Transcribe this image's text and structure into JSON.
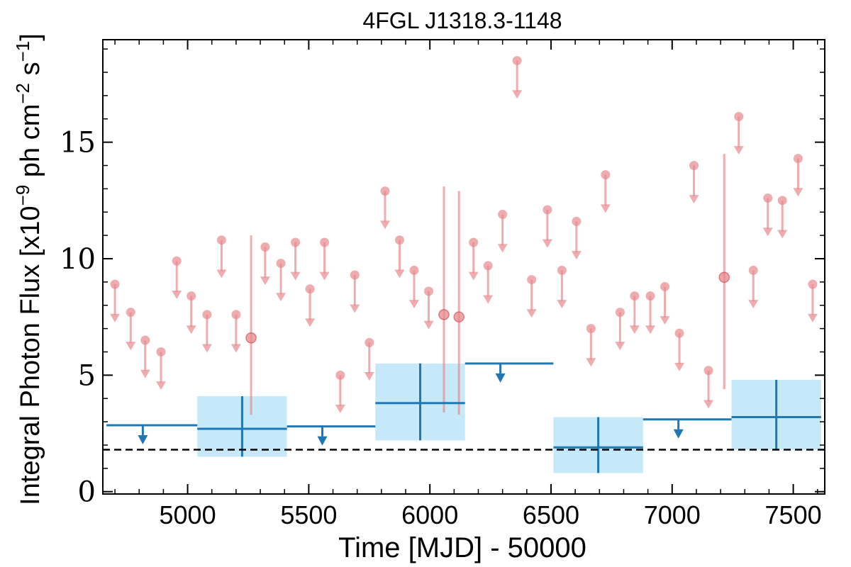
{
  "chart_data": {
    "type": "scatter",
    "title": "4FGL J1318.3-1148",
    "xlabel": "Time [MJD] - 50000",
    "ylabel": "Integral Photon Flux [x10^-9 ph cm^-2 s^-1]",
    "ylabel_parts": {
      "prefix": "Integral Photon Flux [x10",
      "exp1": "−9",
      "mid": " ph cm",
      "exp2": "−2",
      "mid2": " s",
      "exp3": "−1",
      "suffix": "]"
    },
    "xlim": [
      4650,
      7630
    ],
    "ylim": [
      -0.1,
      19.4
    ],
    "xticks": [
      5000,
      5500,
      6000,
      6500,
      7000,
      7500
    ],
    "yticks": [
      0,
      5,
      10,
      15
    ],
    "grid": false,
    "baseline": 1.8,
    "colors": {
      "short_bins": "#e8898c",
      "long_bins": "#1f77b4",
      "long_band": "#c6e9fa",
      "baseline": "#000000"
    },
    "short_bin_upper_limits": [
      {
        "x": 4700,
        "y": 8.9
      },
      {
        "x": 4765,
        "y": 7.7
      },
      {
        "x": 4825,
        "y": 6.5
      },
      {
        "x": 4890,
        "y": 6.0
      },
      {
        "x": 4955,
        "y": 9.9
      },
      {
        "x": 5015,
        "y": 8.4
      },
      {
        "x": 5080,
        "y": 7.6
      },
      {
        "x": 5140,
        "y": 10.8
      },
      {
        "x": 5200,
        "y": 7.6
      },
      {
        "x": 5320,
        "y": 10.5
      },
      {
        "x": 5385,
        "y": 9.8
      },
      {
        "x": 5445,
        "y": 10.7
      },
      {
        "x": 5505,
        "y": 8.7
      },
      {
        "x": 5565,
        "y": 10.7
      },
      {
        "x": 5630,
        "y": 5.0
      },
      {
        "x": 5690,
        "y": 9.3
      },
      {
        "x": 5750,
        "y": 6.4
      },
      {
        "x": 5815,
        "y": 12.9
      },
      {
        "x": 5875,
        "y": 10.8
      },
      {
        "x": 5935,
        "y": 9.5
      },
      {
        "x": 5995,
        "y": 8.6
      },
      {
        "x": 6180,
        "y": 10.7
      },
      {
        "x": 6240,
        "y": 9.7
      },
      {
        "x": 6300,
        "y": 11.9
      },
      {
        "x": 6360,
        "y": 18.5
      },
      {
        "x": 6420,
        "y": 9.1
      },
      {
        "x": 6485,
        "y": 12.1
      },
      {
        "x": 6545,
        "y": 9.5
      },
      {
        "x": 6605,
        "y": 11.6
      },
      {
        "x": 6665,
        "y": 7.0
      },
      {
        "x": 6725,
        "y": 13.6
      },
      {
        "x": 6785,
        "y": 7.7
      },
      {
        "x": 6845,
        "y": 8.4
      },
      {
        "x": 6910,
        "y": 8.4
      },
      {
        "x": 6970,
        "y": 8.8
      },
      {
        "x": 7030,
        "y": 6.8
      },
      {
        "x": 7090,
        "y": 14.0
      },
      {
        "x": 7150,
        "y": 5.2
      },
      {
        "x": 7275,
        "y": 16.1
      },
      {
        "x": 7335,
        "y": 9.5
      },
      {
        "x": 7395,
        "y": 12.6
      },
      {
        "x": 7455,
        "y": 12.5
      },
      {
        "x": 7520,
        "y": 14.3
      },
      {
        "x": 7580,
        "y": 8.9
      }
    ],
    "short_bin_detections": [
      {
        "x": 5262,
        "y": 6.6,
        "ylow": 3.3,
        "yhigh": 11.0
      },
      {
        "x": 6058,
        "y": 7.6,
        "ylow": 3.4,
        "yhigh": 13.1
      },
      {
        "x": 6120,
        "y": 7.5,
        "ylow": 3.3,
        "yhigh": 12.9
      },
      {
        "x": 7215,
        "y": 9.2,
        "ylow": 4.4,
        "yhigh": 14.5
      }
    ],
    "long_bin_upper_limits": [
      {
        "x0": 4665,
        "x1": 5040,
        "y": 2.85
      },
      {
        "x0": 5410,
        "x1": 5775,
        "y": 2.8
      },
      {
        "x0": 6145,
        "x1": 6510,
        "y": 5.5
      },
      {
        "x0": 6880,
        "x1": 7245,
        "y": 3.1
      }
    ],
    "long_bin_detections": [
      {
        "x0": 5040,
        "x1": 5410,
        "y": 2.7,
        "ylow": 1.5,
        "yhigh": 4.1,
        "band_low": 1.5,
        "band_high": 4.1
      },
      {
        "x0": 5775,
        "x1": 6145,
        "y": 3.8,
        "ylow": 2.2,
        "yhigh": 5.5,
        "band_low": 2.2,
        "band_high": 5.5
      },
      {
        "x0": 6510,
        "x1": 6880,
        "y": 1.9,
        "ylow": 0.8,
        "yhigh": 3.2,
        "band_low": 0.8,
        "band_high": 3.2
      },
      {
        "x0": 7245,
        "x1": 7615,
        "y": 3.2,
        "ylow": 1.8,
        "yhigh": 4.8,
        "band_low": 1.8,
        "band_high": 4.8
      }
    ]
  }
}
